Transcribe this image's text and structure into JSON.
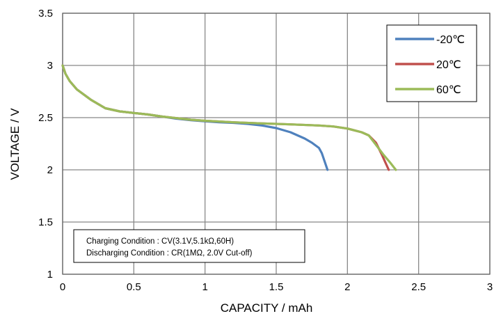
{
  "chart_data": {
    "type": "line",
    "xlabel": "CAPACITY / mAh",
    "ylabel": "VOLTAGE / V",
    "xlim": [
      0,
      3
    ],
    "ylim": [
      1,
      3.5
    ],
    "xticks": [
      0,
      0.5,
      1,
      1.5,
      2,
      2.5,
      3
    ],
    "yticks": [
      1,
      1.5,
      2,
      2.5,
      3,
      3.5
    ],
    "xtick_labels": [
      "0",
      "0.5",
      "1",
      "1.5",
      "2",
      "2.5",
      "3"
    ],
    "ytick_labels": [
      "1",
      "1.5",
      "2",
      "2.5",
      "3",
      "3.5"
    ],
    "grid": true,
    "legend_position": "top-right",
    "series": [
      {
        "name": "-20℃",
        "color": "#4f81bd",
        "x": [
          0,
          0.02,
          0.05,
          0.1,
          0.2,
          0.3,
          0.4,
          0.5,
          0.6,
          0.7,
          0.8,
          0.9,
          1.0,
          1.1,
          1.2,
          1.3,
          1.4,
          1.5,
          1.6,
          1.7,
          1.75,
          1.8,
          1.82,
          1.84,
          1.86
        ],
        "y": [
          3.0,
          2.92,
          2.85,
          2.77,
          2.67,
          2.59,
          2.56,
          2.545,
          2.53,
          2.51,
          2.49,
          2.475,
          2.465,
          2.455,
          2.45,
          2.44,
          2.425,
          2.4,
          2.36,
          2.3,
          2.26,
          2.21,
          2.16,
          2.08,
          2.0
        ]
      },
      {
        "name": "20℃",
        "color": "#c0504d",
        "x": [
          0,
          0.02,
          0.05,
          0.1,
          0.2,
          0.3,
          0.4,
          0.5,
          0.6,
          0.7,
          0.8,
          0.9,
          1.0,
          1.2,
          1.4,
          1.6,
          1.8,
          1.9,
          2.0,
          2.1,
          2.15,
          2.2,
          2.24,
          2.27,
          2.29
        ],
        "y": [
          3.0,
          2.92,
          2.85,
          2.77,
          2.67,
          2.59,
          2.56,
          2.545,
          2.53,
          2.51,
          2.495,
          2.48,
          2.47,
          2.455,
          2.445,
          2.435,
          2.425,
          2.415,
          2.395,
          2.36,
          2.33,
          2.26,
          2.15,
          2.06,
          2.0
        ]
      },
      {
        "name": "60℃",
        "color": "#9bbb59",
        "x": [
          0,
          0.02,
          0.05,
          0.1,
          0.2,
          0.3,
          0.4,
          0.5,
          0.6,
          0.7,
          0.8,
          0.9,
          1.0,
          1.2,
          1.4,
          1.6,
          1.8,
          1.9,
          2.0,
          2.1,
          2.15,
          2.2,
          2.25,
          2.3,
          2.34
        ],
        "y": [
          3.0,
          2.92,
          2.85,
          2.77,
          2.67,
          2.59,
          2.56,
          2.545,
          2.53,
          2.51,
          2.495,
          2.48,
          2.47,
          2.455,
          2.445,
          2.435,
          2.425,
          2.415,
          2.395,
          2.36,
          2.33,
          2.24,
          2.15,
          2.07,
          2.0
        ]
      }
    ],
    "annotation": {
      "lines": [
        "Charging Condition : CV(3.1V,5.1kΩ,60H)",
        "Discharging Condition : CR(1MΩ, 2.0V Cut-off)"
      ],
      "position": "bottom-left"
    }
  }
}
